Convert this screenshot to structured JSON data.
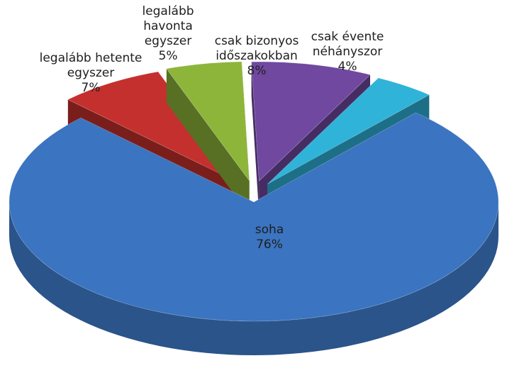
{
  "chart_data": {
    "type": "pie3d",
    "categories": [
      "legalább hetente egyszer",
      "legalább havonta egyszer",
      "csak bizonyos időszakokban",
      "csak évente néhányszor",
      "soha"
    ],
    "values": [
      7,
      5,
      8,
      4,
      76
    ],
    "value_labels": [
      "7%",
      "5%",
      "8%",
      "4%",
      "76%"
    ],
    "colors": [
      "#c4302d",
      "#8db53a",
      "#7048a0",
      "#2fb3d9",
      "#3b74c0"
    ]
  }
}
